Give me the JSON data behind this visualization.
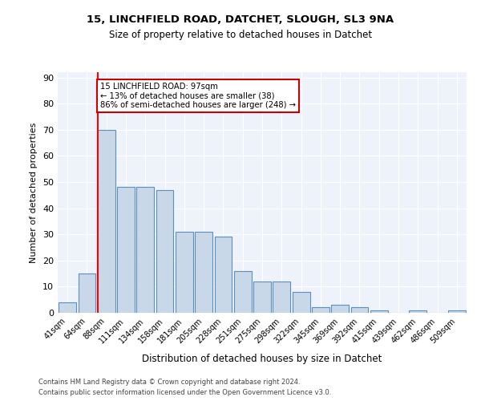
{
  "title1": "15, LINCHFIELD ROAD, DATCHET, SLOUGH, SL3 9NA",
  "title2": "Size of property relative to detached houses in Datchet",
  "xlabel": "Distribution of detached houses by size in Datchet",
  "ylabel": "Number of detached properties",
  "categories": [
    "41sqm",
    "64sqm",
    "88sqm",
    "111sqm",
    "134sqm",
    "158sqm",
    "181sqm",
    "205sqm",
    "228sqm",
    "251sqm",
    "275sqm",
    "298sqm",
    "322sqm",
    "345sqm",
    "369sqm",
    "392sqm",
    "415sqm",
    "439sqm",
    "462sqm",
    "486sqm",
    "509sqm"
  ],
  "values": [
    4,
    15,
    70,
    48,
    48,
    47,
    31,
    31,
    29,
    16,
    12,
    12,
    8,
    2,
    3,
    2,
    1,
    0,
    1,
    0,
    1
  ],
  "bar_color": "#c8d8e8",
  "bar_edge_color": "#5a8fc0",
  "red_line_index": 2,
  "annotation_text": "15 LINCHFIELD ROAD: 97sqm\n← 13% of detached houses are smaller (38)\n86% of semi-detached houses are larger (248) →",
  "annotation_box_color": "#ffffff",
  "annotation_box_edge": "#cc0000",
  "ylim": [
    0,
    92
  ],
  "yticks": [
    0,
    10,
    20,
    30,
    40,
    50,
    60,
    70,
    80,
    90
  ],
  "background_color": "#eef2fb",
  "grid_color": "#ffffff",
  "footer1": "Contains HM Land Registry data © Crown copyright and database right 2024.",
  "footer2": "Contains public sector information licensed under the Open Government Licence v3.0."
}
